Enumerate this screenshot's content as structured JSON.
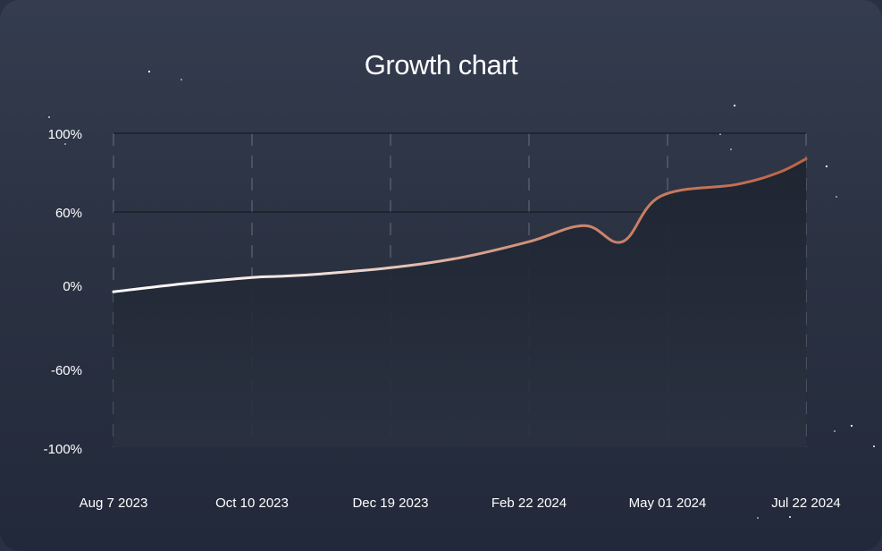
{
  "chart_data": {
    "type": "area",
    "title": "Growth chart",
    "xlabel": "",
    "ylabel": "",
    "x_tick_labels": [
      "Aug 7 2023",
      "Oct 10 2023",
      "Dec 19 2023",
      "Feb 22  2024",
      "May 01 2024",
      "Jul 22 2024"
    ],
    "y_tick_labels": [
      "100%",
      "60%",
      "0%",
      "-60%",
      "-100%"
    ],
    "y_ticks": [
      100,
      60,
      0,
      -60,
      -100
    ],
    "ylim": [
      -100,
      100
    ],
    "grid": {
      "horizontal": [
        100,
        60
      ],
      "vertical_dashed": true
    },
    "series": [
      {
        "values": [
          {
            "x": 0,
            "y": -4
          },
          {
            "x": 0.1,
            "y": 2
          },
          {
            "x": 0.2,
            "y": 7
          },
          {
            "x": 0.24,
            "y": 8
          },
          {
            "x": 0.3,
            "y": 10
          },
          {
            "x": 0.4,
            "y": 15
          },
          {
            "x": 0.5,
            "y": 23
          },
          {
            "x": 0.6,
            "y": 36
          },
          {
            "x": 0.68,
            "y": 49
          },
          {
            "x": 0.735,
            "y": 36
          },
          {
            "x": 0.79,
            "y": 68
          },
          {
            "x": 0.9,
            "y": 74
          },
          {
            "x": 0.96,
            "y": 80
          },
          {
            "x": 1.0,
            "y": 87
          }
        ]
      }
    ],
    "colors": {
      "line_start": "#ffffff",
      "line_end": "#c06a4c",
      "fill": "#1f2633"
    }
  }
}
